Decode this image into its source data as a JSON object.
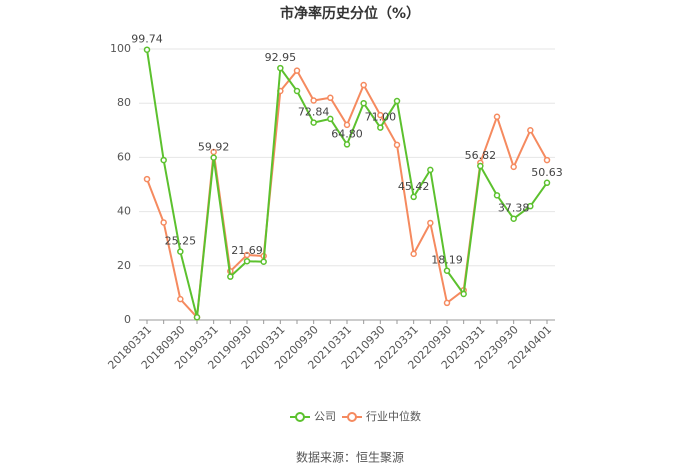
{
  "chart_data": {
    "type": "line",
    "title": "市净率历史分位（%）",
    "categories": [
      "20180331",
      null,
      "20180930",
      null,
      "20190331",
      null,
      "20190930",
      null,
      "20200331",
      null,
      "20200930",
      null,
      "20210331",
      null,
      "20210930",
      null,
      "20220331",
      null,
      "20220930",
      null,
      "20230331",
      null,
      "20230930",
      null,
      "20240401"
    ],
    "series": [
      {
        "name": "公司",
        "color": "#5cc12e",
        "values": [
          99.74,
          59,
          25.25,
          1,
          59.92,
          16,
          21.69,
          21.5,
          92.95,
          84.5,
          72.84,
          74.2,
          64.8,
          80,
          71.0,
          80.8,
          45.42,
          55.4,
          18.19,
          9.6,
          56.82,
          46,
          37.38,
          42,
          50.63
        ],
        "value_labels": [
          "99.74",
          null,
          "25.25",
          null,
          "59.92",
          null,
          "21.69",
          null,
          "92.95",
          null,
          "72.84",
          null,
          "64.80",
          null,
          "71.00",
          null,
          "45.42",
          null,
          "18.19",
          null,
          "56.82",
          null,
          "37.38",
          null,
          "50.63"
        ]
      },
      {
        "name": "行业中位数",
        "color": "#f58a5f",
        "values": [
          52,
          36,
          7.7,
          1,
          62,
          18,
          24,
          23.6,
          84.5,
          92,
          81,
          82,
          72,
          86.7,
          75.6,
          64.6,
          24.4,
          35.8,
          6.3,
          11,
          58,
          75,
          56.5,
          70,
          59
        ]
      }
    ],
    "ylim": [
      0,
      100
    ],
    "yticks": [
      0,
      20,
      40,
      60,
      80,
      100
    ],
    "grid": true,
    "source": "数据来源：恒生聚源"
  }
}
